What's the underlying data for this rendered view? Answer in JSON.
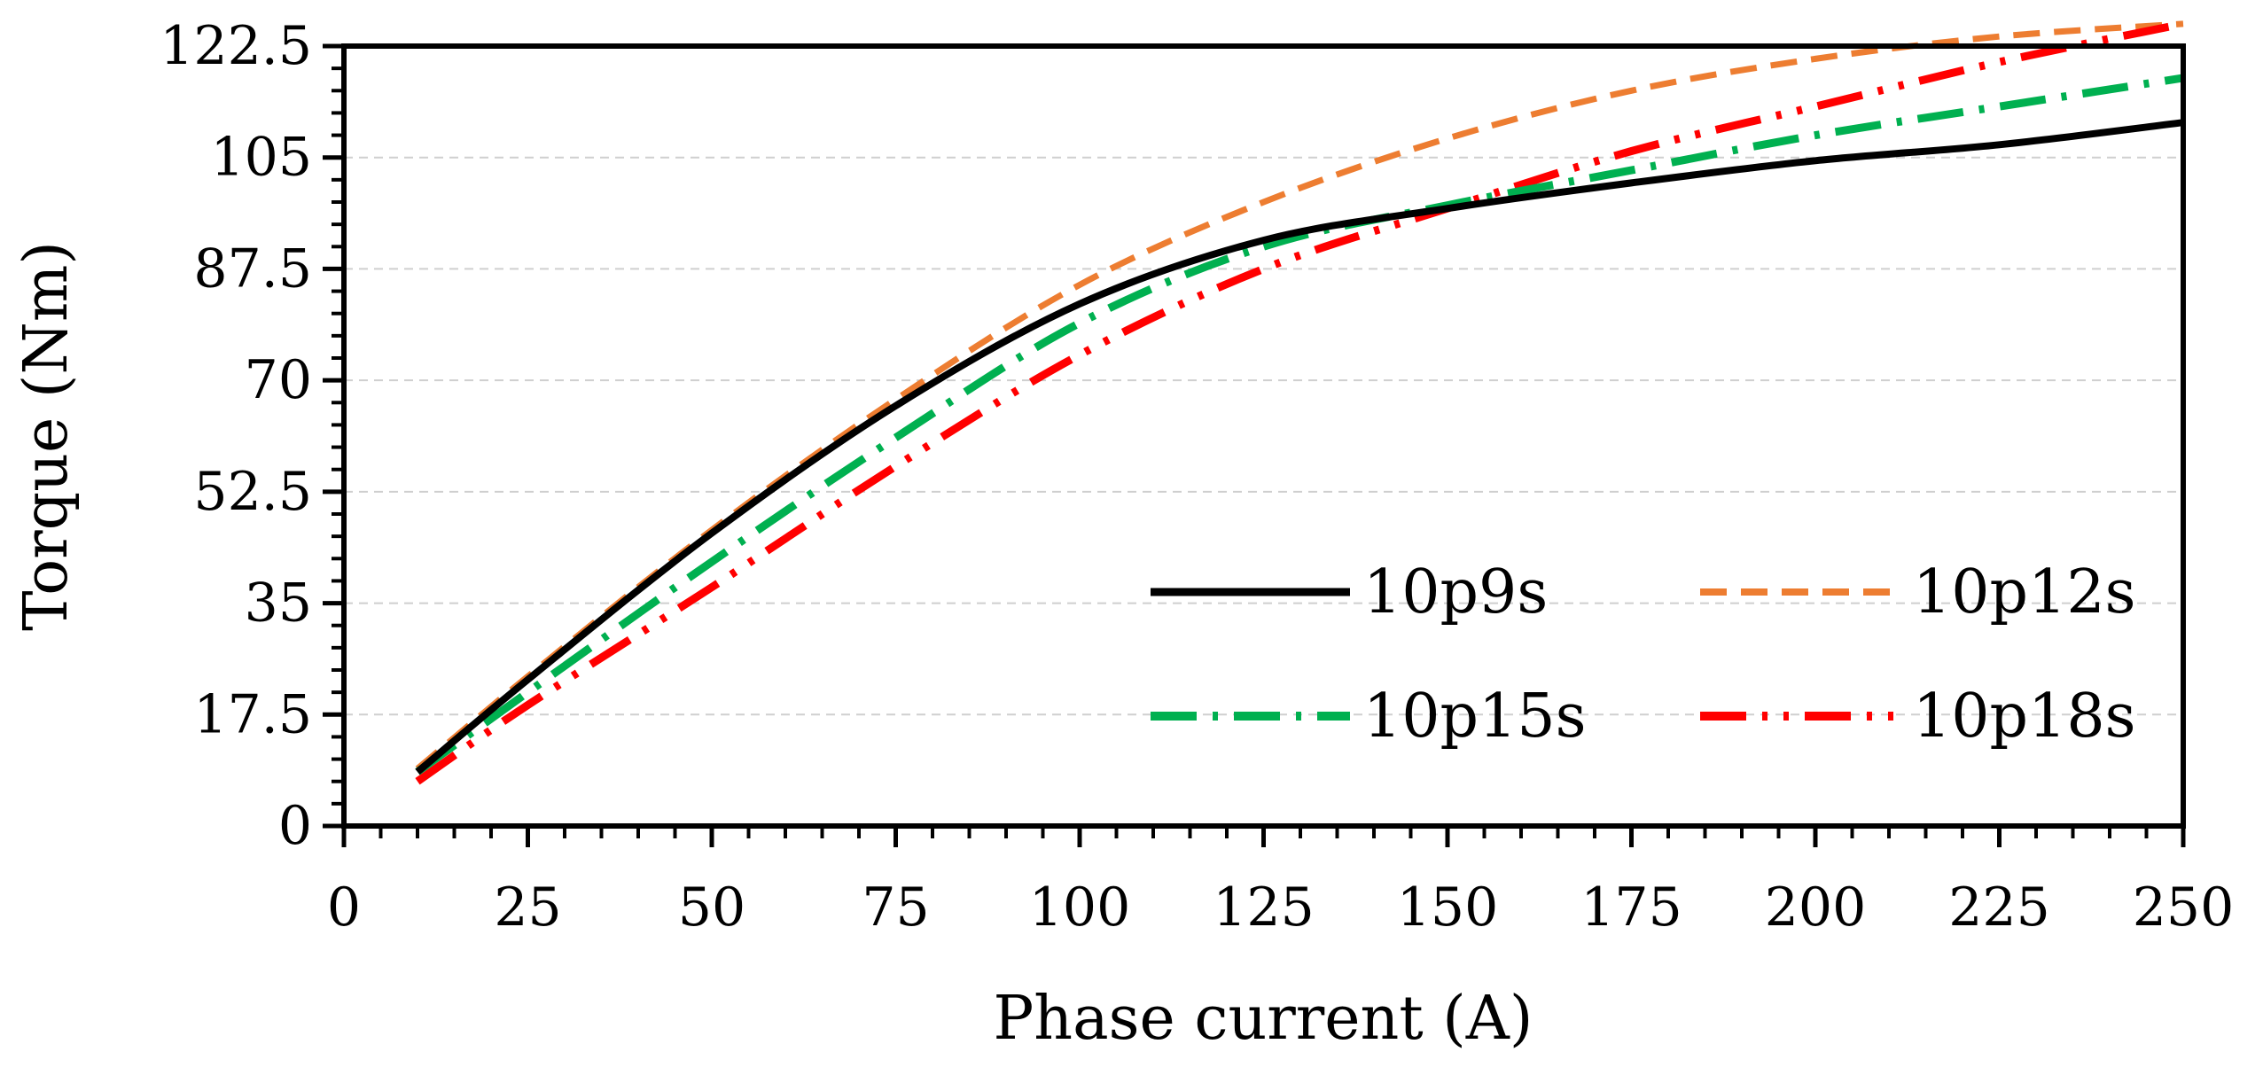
{
  "chart_data": {
    "type": "line",
    "title": "",
    "xlabel": "Phase current (A)",
    "ylabel": "Torque (Nm)",
    "xlim": [
      0,
      250
    ],
    "ylim": [
      0,
      122.5
    ],
    "xticks": [
      0,
      25,
      50,
      75,
      100,
      125,
      150,
      175,
      200,
      225,
      250
    ],
    "xtick_labels": [
      "0",
      "25",
      "50",
      "75",
      "100",
      "125",
      "150",
      "175",
      "200",
      "225",
      "250"
    ],
    "yticks": [
      0,
      17.5,
      35,
      52.5,
      70,
      87.5,
      105,
      122.5
    ],
    "ytick_labels": [
      "0",
      "17.5",
      "35",
      "52.5",
      "70",
      "87.5",
      "105",
      "122.5"
    ],
    "grid": "horizontal dashed",
    "legend_position": "center-right",
    "x": [
      10,
      25,
      50,
      75,
      100,
      125,
      150,
      175,
      200,
      225,
      250
    ],
    "series": [
      {
        "name": "10p9s",
        "style": "solid",
        "color": "#000000",
        "values": [
          8.5,
          23,
          46,
          66,
          82,
          92,
          97,
          101,
          104.5,
          107,
          110.5
        ]
      },
      {
        "name": "10p12s",
        "style": "dash",
        "color": "#ED7D31",
        "values": [
          9,
          23.5,
          46.5,
          67,
          85,
          98,
          108,
          115.5,
          120.5,
          124,
          126
        ]
      },
      {
        "name": "10p15s",
        "style": "dash-dot",
        "color": "#00B050",
        "values": [
          8.5,
          21,
          41.5,
          61,
          79,
          91,
          97.5,
          103,
          108.5,
          113,
          117.5
        ]
      },
      {
        "name": "10p18s",
        "style": "dash-dot-dot",
        "color": "#FF0000",
        "values": [
          7,
          19,
          37.5,
          56.5,
          74,
          87.5,
          97,
          106,
          113,
          120,
          126
        ]
      }
    ]
  }
}
